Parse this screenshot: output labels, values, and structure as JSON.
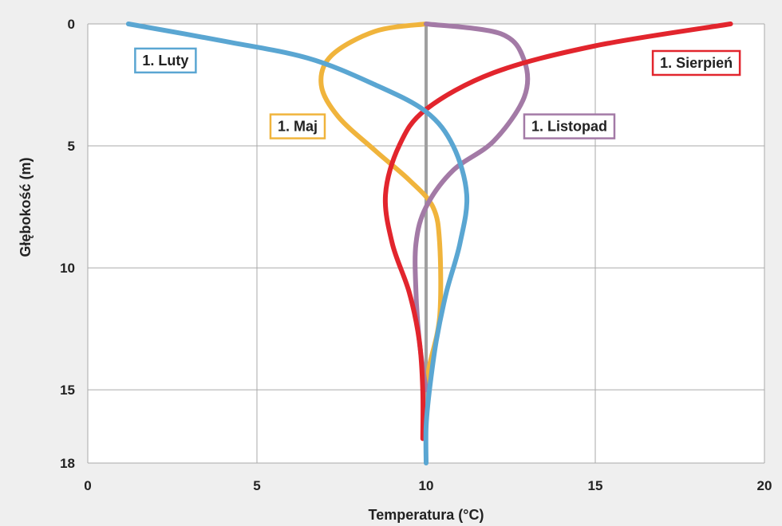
{
  "chart_data": {
    "type": "line",
    "title": "",
    "xlabel": "Temperatura (°C)",
    "ylabel": "Głębokość (m)",
    "xlim": [
      0,
      20
    ],
    "ylim": [
      0,
      18
    ],
    "y_inverted": true,
    "x_ticks": [
      "0",
      "5",
      "10",
      "15",
      "20"
    ],
    "y_ticks": [
      "0",
      "5",
      "10",
      "15",
      "18"
    ],
    "grid": true,
    "series": [
      {
        "name": "1. Luty",
        "color": "#5aa6d2",
        "points": [
          [
            1.2,
            0
          ],
          [
            4,
            0.7
          ],
          [
            6.5,
            1.4
          ],
          [
            8.5,
            2.5
          ],
          [
            10,
            3.6
          ],
          [
            10.8,
            5
          ],
          [
            11.2,
            7
          ],
          [
            11,
            9
          ],
          [
            10.6,
            11
          ],
          [
            10.3,
            13
          ],
          [
            10.1,
            15
          ],
          [
            10,
            16.5
          ],
          [
            10,
            18
          ]
        ]
      },
      {
        "name": "1. Maj",
        "color": "#f0b43c",
        "points": [
          [
            10,
            0
          ],
          [
            8.5,
            0.3
          ],
          [
            7.2,
            1.3
          ],
          [
            6.9,
            2.5
          ],
          [
            7.4,
            3.8
          ],
          [
            8.5,
            5.2
          ],
          [
            9.5,
            6.4
          ],
          [
            10.2,
            7.5
          ],
          [
            10.4,
            9
          ],
          [
            10.4,
            12
          ],
          [
            10.1,
            14
          ],
          [
            10,
            15
          ]
        ]
      },
      {
        "name": "1. Listopad",
        "color": "#a37aa6",
        "points": [
          [
            10,
            0
          ],
          [
            12.2,
            0.4
          ],
          [
            12.9,
            1.5
          ],
          [
            12.9,
            3
          ],
          [
            12,
            4.8
          ],
          [
            10.8,
            6
          ],
          [
            10,
            7.5
          ],
          [
            9.7,
            9
          ],
          [
            9.7,
            11
          ],
          [
            9.8,
            13
          ],
          [
            10,
            15
          ]
        ]
      },
      {
        "name": "1. Sierpień",
        "color": "#e2252d",
        "points": [
          [
            19,
            0
          ],
          [
            15,
            0.9
          ],
          [
            12,
            2
          ],
          [
            10,
            3.5
          ],
          [
            9.2,
            5
          ],
          [
            8.8,
            7
          ],
          [
            9,
            9
          ],
          [
            9.5,
            11
          ],
          [
            9.8,
            13
          ],
          [
            9.9,
            15
          ],
          [
            9.9,
            17
          ]
        ]
      }
    ],
    "reference_line": {
      "x": 10,
      "color": "#a0a0a0"
    },
    "legend_labels": [
      {
        "series": 0,
        "label": "1. Luty",
        "at": [
          1.4,
          1.5
        ]
      },
      {
        "series": 1,
        "label": "1. Maj",
        "at": [
          5.4,
          4.2
        ]
      },
      {
        "series": 2,
        "label": "1. Listopad",
        "at": [
          12.9,
          4.2
        ]
      },
      {
        "series": 3,
        "label": "1. Sierpień",
        "at": [
          16.7,
          1.6
        ]
      }
    ]
  },
  "colors": {
    "plot_background": "#efefef",
    "grid": "#aaaaaa",
    "text": "#222222"
  }
}
